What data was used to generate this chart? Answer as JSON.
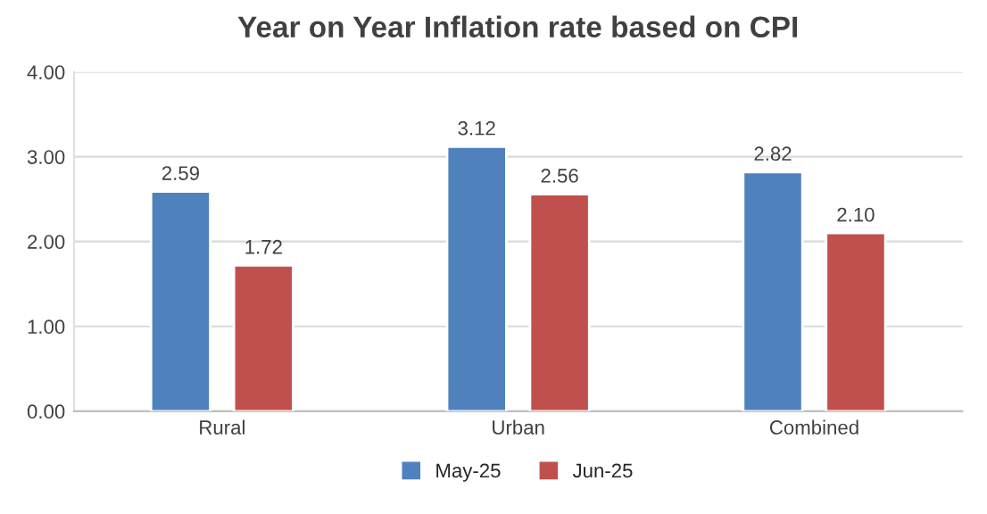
{
  "chart_data": {
    "type": "bar",
    "title": "Year on Year Inflation rate based on CPI",
    "categories": [
      "Rural",
      "Urban",
      "Combined"
    ],
    "series": [
      {
        "name": "May-25",
        "color": "#4f81bd",
        "values": [
          2.59,
          3.12,
          2.82
        ],
        "value_labels": [
          "2.59",
          "3.12",
          "2.82"
        ]
      },
      {
        "name": "Jun-25",
        "color": "#c0504d",
        "values": [
          1.72,
          2.56,
          2.1
        ],
        "value_labels": [
          "1.72",
          "2.56",
          "2.10"
        ]
      }
    ],
    "ylim": [
      0,
      4
    ],
    "yticks": [
      {
        "value": 0,
        "label": "0.00"
      },
      {
        "value": 1,
        "label": "1.00"
      },
      {
        "value": 2,
        "label": "2.00"
      },
      {
        "value": 3,
        "label": "3.00"
      },
      {
        "value": 4,
        "label": "4.00"
      }
    ],
    "grid": "y",
    "legend": "bottom"
  }
}
